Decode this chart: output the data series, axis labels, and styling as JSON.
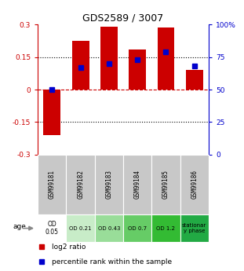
{
  "title": "GDS2589 / 3007",
  "samples": [
    "GSM99181",
    "GSM99182",
    "GSM99183",
    "GSM99184",
    "GSM99185",
    "GSM99186"
  ],
  "log2_ratios": [
    -0.21,
    0.225,
    0.29,
    0.185,
    0.285,
    0.09
  ],
  "percentile_ranks": [
    50,
    67,
    70,
    73,
    79,
    68
  ],
  "ylim_left": [
    -0.3,
    0.3
  ],
  "ylim_right": [
    0,
    100
  ],
  "yticks_left": [
    -0.3,
    -0.15,
    0,
    0.15,
    0.3
  ],
  "yticks_right": [
    0,
    25,
    50,
    75,
    100
  ],
  "ytick_labels_left": [
    "-0.3",
    "-0.15",
    "0",
    "0.15",
    "0.3"
  ],
  "ytick_labels_right": [
    "0",
    "25",
    "50",
    "75",
    "100%"
  ],
  "bar_color": "#cc0000",
  "dot_color": "#0000cc",
  "hline_color": "#cc0000",
  "dotted_color": "#000000",
  "age_labels": [
    "OD\n0.05",
    "OD 0.21",
    "OD 0.43",
    "OD 0.7",
    "OD 1.2",
    "stationar\ny phase"
  ],
  "age_bg_colors": [
    "#ffffff",
    "#c8ecc8",
    "#99dd99",
    "#66cc66",
    "#33bb33",
    "#22aa44"
  ],
  "sample_bg_color": "#c8c8c8",
  "legend_bar_label": "log2 ratio",
  "legend_dot_label": "percentile rank within the sample",
  "age_label": "age"
}
